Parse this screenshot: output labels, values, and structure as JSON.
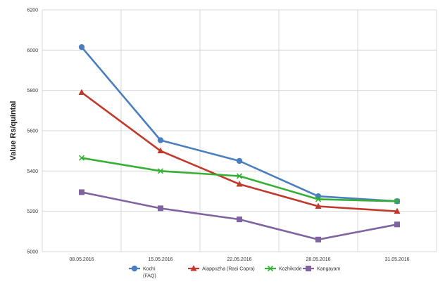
{
  "chart_data": {
    "type": "line",
    "title": "",
    "xlabel": "",
    "ylabel": "Value Rs/quintal",
    "ylim": [
      5000,
      6200
    ],
    "y_ticks": [
      5000,
      5200,
      5400,
      5600,
      5800,
      6000,
      6200
    ],
    "categories": [
      "08.05.2016",
      "15.05.2016",
      "22.05.2016",
      "28.05.2016",
      "31.05.2016"
    ],
    "grid": true,
    "legend_position": "bottom",
    "series": [
      {
        "name": "Kochi (FAQ)",
        "legend_lines": [
          "Kochi",
          "(FAQ)"
        ],
        "color": "#4a7ebf",
        "marker": "circle",
        "values": [
          6015,
          5553,
          5450,
          5275,
          5250
        ]
      },
      {
        "name": "Alappuzha (Rasi Copra)",
        "legend_lines": [
          "Alappuzha (Rasi Copra)"
        ],
        "color": "#c0392b",
        "marker": "triangle",
        "values": [
          5790,
          5500,
          5335,
          5225,
          5200
        ]
      },
      {
        "name": "Kozhikode",
        "legend_lines": [
          "Kozhikode"
        ],
        "color": "#35b035",
        "marker": "x",
        "values": [
          5465,
          5400,
          5375,
          5260,
          5250
        ]
      },
      {
        "name": "Kangayam",
        "legend_lines": [
          "Kangayam"
        ],
        "color": "#8064a2",
        "marker": "square",
        "values": [
          5295,
          5215,
          5160,
          5060,
          5135
        ]
      }
    ]
  }
}
